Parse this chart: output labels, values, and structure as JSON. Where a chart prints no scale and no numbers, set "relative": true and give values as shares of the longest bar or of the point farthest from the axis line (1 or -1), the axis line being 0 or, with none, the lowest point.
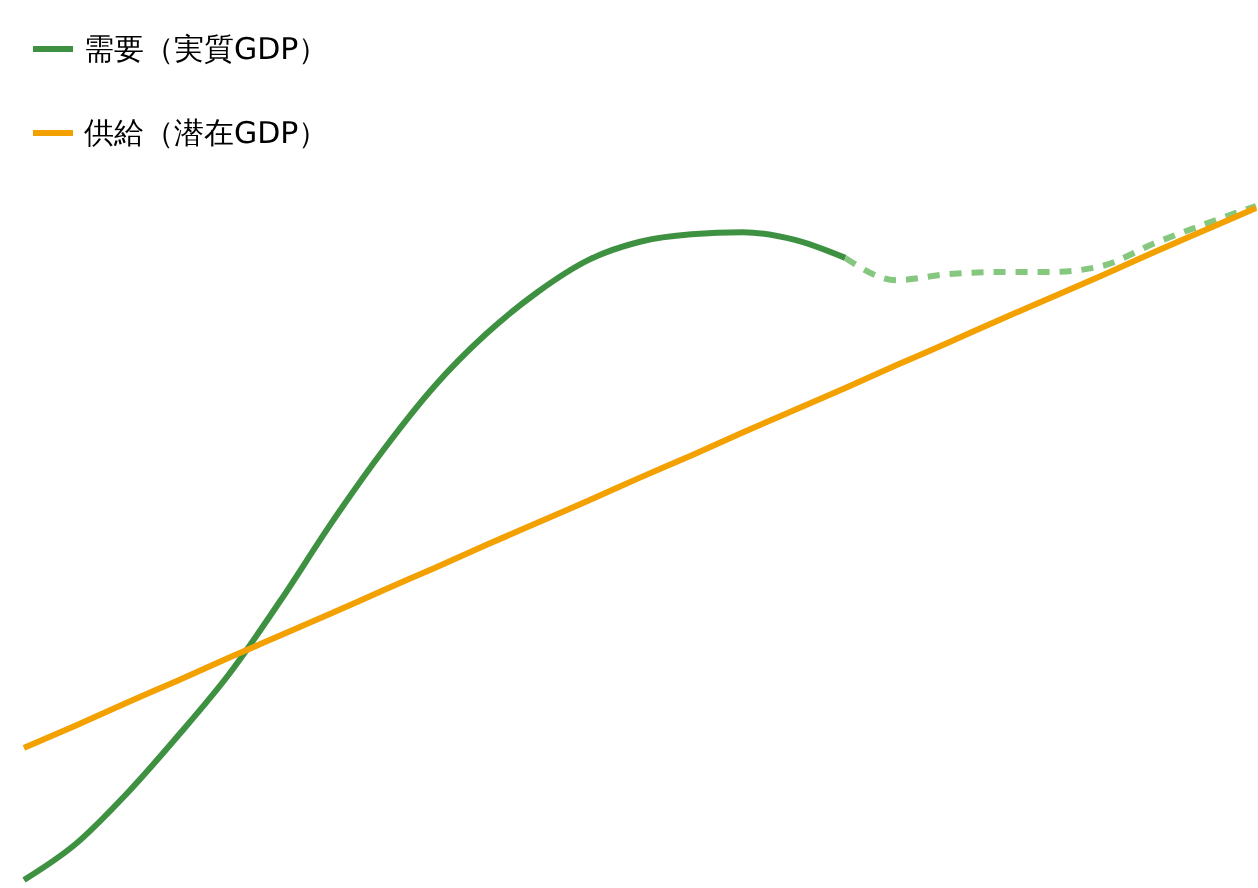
{
  "chart_data": {
    "type": "line",
    "relative": true,
    "legend": "top left",
    "categories": [
      null,
      null,
      null,
      null,
      null,
      null,
      null,
      null,
      null,
      null,
      null,
      null,
      null,
      null,
      null,
      null,
      null,
      null,
      null,
      null,
      null,
      null,
      null,
      null,
      null
    ],
    "series": [
      {
        "name": "需要（実質GDP）",
        "color": "#3f9142",
        "line_style": "solid",
        "values": [
          0,
          0.053,
          0.128,
          0.214,
          0.306,
          0.415,
          0.531,
          0.638,
          0.733,
          0.81,
          0.872,
          0.92,
          0.947,
          0.958,
          0.961,
          0.95,
          0.923,
          null,
          null,
          null,
          null,
          null,
          null,
          null,
          null
        ]
      },
      {
        "color": "#86c77f",
        "line_style": "dashed",
        "values": [
          null,
          null,
          null,
          null,
          null,
          null,
          null,
          null,
          null,
          null,
          null,
          null,
          null,
          null,
          null,
          null,
          0.923,
          0.89,
          0.899,
          0.902,
          0.902,
          0.911,
          0.944,
          0.973,
          1
        ]
      },
      {
        "name": "供給（潜在GDP）",
        "color": "#f2a100",
        "line_style": "solid",
        "values": [
          0.196,
          0.229,
          0.263,
          0.296,
          0.33,
          0.363,
          0.396,
          0.43,
          0.463,
          0.497,
          0.53,
          0.563,
          0.597,
          0.63,
          0.664,
          0.697,
          0.73,
          0.764,
          0.797,
          0.831,
          0.864,
          0.897,
          0.931,
          0.964,
          0.997
        ]
      }
    ]
  }
}
